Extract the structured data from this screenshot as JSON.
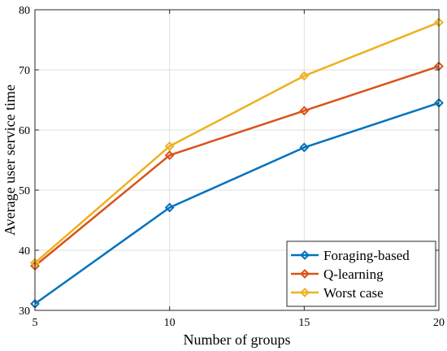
{
  "chart_data": {
    "type": "line",
    "title": "",
    "xlabel": "Number of groups",
    "ylabel": "Average user service time",
    "x": [
      5,
      10,
      15,
      20
    ],
    "xlim": [
      5,
      20
    ],
    "ylim": [
      30,
      80
    ],
    "xticks": [
      "5",
      "10",
      "15",
      "20"
    ],
    "yticks": [
      "30",
      "40",
      "50",
      "60",
      "70",
      "80"
    ],
    "grid": true,
    "legend_position": "bottom-right",
    "marker": "diamond",
    "series": [
      {
        "name": "Foraging-based",
        "color": "#0072BD",
        "values": [
          31.1,
          47.1,
          57.1,
          64.5
        ]
      },
      {
        "name": "Q-learning",
        "color": "#D95319",
        "values": [
          37.4,
          55.8,
          63.2,
          70.6
        ]
      },
      {
        "name": "Worst case",
        "color": "#EDB120",
        "values": [
          37.9,
          57.3,
          69.0,
          77.9
        ]
      }
    ]
  }
}
